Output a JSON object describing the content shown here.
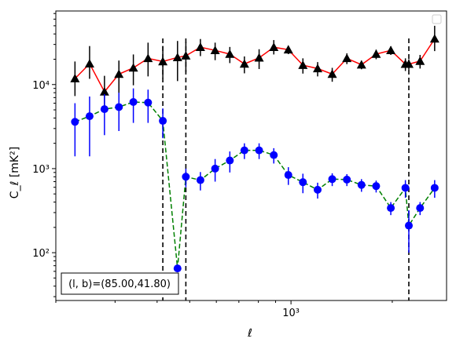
{
  "chart_data": {
    "type": "line",
    "xscale": "log",
    "yscale": "log",
    "xlabel": "ℓ",
    "ylabel": "C_ℓ  [mK²]",
    "xlim": [
      200,
      2900
    ],
    "ylim": [
      27,
      75000
    ],
    "x_tick_labels": [
      {
        "value": 1000,
        "label": "10³"
      }
    ],
    "y_tick_labels": [
      {
        "value": 100,
        "label": "10²"
      },
      {
        "value": 1000,
        "label": "10³"
      },
      {
        "value": 10000,
        "label": "10⁴"
      }
    ],
    "annotation": "(l, b)=(85.00,41.80)",
    "legend": {
      "placement": "top-right",
      "entries": []
    },
    "vlines": [
      416,
      487,
      2240
    ],
    "series": [
      {
        "color": "#ff0000",
        "marker": "triangle",
        "linestyle": "solid",
        "x": [
          228,
          252,
          279,
          308,
          340,
          376,
          416,
          460,
          487,
          538,
          595,
          658,
          727,
          804,
          889,
          982,
          1085,
          1200,
          1326,
          1466,
          1620,
          1791,
          1980,
          2188,
          2240,
          2419,
          2673
        ],
        "y": [
          11800,
          17700,
          8200,
          13300,
          15800,
          20500,
          18800,
          21000,
          22000,
          27800,
          25500,
          23000,
          17600,
          20800,
          27800,
          26000,
          17000,
          15500,
          13300,
          20500,
          17200,
          23000,
          25500,
          17500,
          17500,
          19000,
          35000
        ],
        "yerr_low": [
          4500,
          6000,
          3000,
          5500,
          6000,
          8000,
          7000,
          10000,
          8000,
          6000,
          6000,
          5000,
          4000,
          5500,
          5000,
          3000,
          3500,
          3000,
          2500,
          3000,
          2000,
          3000,
          3000,
          3000,
          2500,
          3500,
          10000
        ],
        "yerr_high": [
          7000,
          11000,
          4500,
          6000,
          7000,
          11000,
          10000,
          12000,
          10000,
          7000,
          6000,
          5000,
          4000,
          5500,
          6000,
          2500,
          3500,
          3000,
          2500,
          3000,
          2000,
          3000,
          3000,
          3000,
          2500,
          3500,
          15000
        ]
      },
      {
        "color": "#008000",
        "marker": "circle",
        "marker_color": "#0000ff",
        "linestyle": "dashed",
        "x": [
          228,
          252,
          279,
          308,
          340,
          376,
          416,
          460,
          487,
          538,
          595,
          658,
          727,
          804,
          889,
          982,
          1085,
          1200,
          1326,
          1466,
          1620,
          1791,
          1980,
          2188,
          2240,
          2419,
          2673
        ],
        "y": [
          3600,
          4200,
          5100,
          5400,
          6200,
          6100,
          3700,
          65,
          800,
          730,
          1000,
          1250,
          1650,
          1650,
          1450,
          840,
          690,
          560,
          750,
          740,
          640,
          620,
          340,
          590,
          210,
          340,
          590
        ],
        "yerr_low": [
          2200,
          2800,
          2600,
          2600,
          2700,
          2600,
          1400,
          0,
          200,
          180,
          300,
          350,
          350,
          350,
          300,
          200,
          180,
          120,
          130,
          120,
          110,
          100,
          60,
          140,
          110,
          60,
          140
        ],
        "yerr_high": [
          2400,
          3000,
          2600,
          2600,
          2800,
          2600,
          1500,
          0,
          200,
          180,
          300,
          350,
          350,
          350,
          300,
          200,
          180,
          120,
          130,
          120,
          110,
          100,
          60,
          140,
          110,
          60,
          140
        ]
      }
    ]
  }
}
